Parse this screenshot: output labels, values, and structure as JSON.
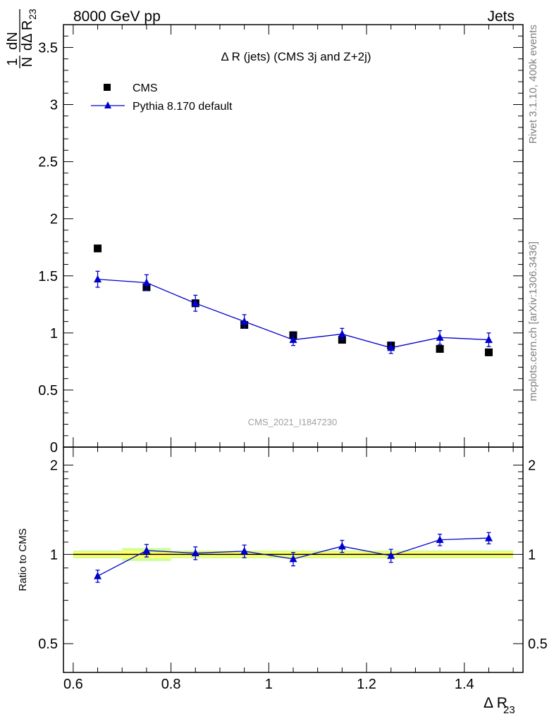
{
  "header": {
    "left": "8000 GeV pp",
    "right": "Jets"
  },
  "side_labels": {
    "rivet": "Rivet 3.1.10,  400k events",
    "mcplots": "mcplots.cern.ch [arXiv:1306.3436]"
  },
  "analysis_id": "CMS_2021_I1847230",
  "colors": {
    "data": "#000000",
    "mc": "#0000cc",
    "band_inner": "#ffff66",
    "band_outer": "#ccff99",
    "axis": "#000000",
    "analysis_id": "#a0a0a0",
    "side": "#808080"
  },
  "chart_data": [
    {
      "type": "scatter",
      "panel": "main",
      "title": "Δ R (jets) (CMS 3j and Z+2j)",
      "ylabel": "1/N dN/dΔ R23",
      "ylabel_parts": {
        "num": "1",
        "den": "N",
        "dnum": "dN",
        "dden": "dΔ R",
        "sub": "23"
      },
      "xlim": [
        0.58,
        1.52
      ],
      "ylim": [
        0,
        3.7
      ],
      "yticks": [
        "0",
        "0.5",
        "1",
        "1.5",
        "2",
        "2.5",
        "3",
        "3.5"
      ],
      "ytick_values": [
        0,
        0.5,
        1,
        1.5,
        2,
        2.5,
        3,
        3.5
      ],
      "legend_position": "top-left",
      "series": [
        {
          "name": "CMS",
          "marker": "square",
          "x": [
            0.65,
            0.75,
            0.85,
            0.95,
            1.05,
            1.15,
            1.25,
            1.35,
            1.45
          ],
          "y": [
            1.74,
            1.4,
            1.26,
            1.07,
            0.98,
            0.94,
            0.89,
            0.86,
            0.83
          ]
        },
        {
          "name": "Pythia 8.170 default",
          "marker": "triangle",
          "x": [
            0.65,
            0.75,
            0.85,
            0.95,
            1.05,
            1.15,
            1.25,
            1.35,
            1.45
          ],
          "y": [
            1.47,
            1.44,
            1.26,
            1.1,
            0.94,
            0.99,
            0.87,
            0.96,
            0.94
          ],
          "yerr": [
            0.07,
            0.07,
            0.07,
            0.06,
            0.05,
            0.05,
            0.05,
            0.06,
            0.06
          ]
        }
      ]
    },
    {
      "type": "line",
      "panel": "ratio",
      "ylabel": "Ratio to CMS",
      "xlabel": "Δ R",
      "xlabel_sub": "23",
      "xlim": [
        0.58,
        1.52
      ],
      "ylim": [
        0.4,
        2.3
      ],
      "log_y": true,
      "xticks": [
        "0.6",
        "0.8",
        "1",
        "1.2",
        "1.4"
      ],
      "xtick_values": [
        0.6,
        0.8,
        1.0,
        1.2,
        1.4
      ],
      "yticks": [
        "0.5",
        "1",
        "2"
      ],
      "ytick_values": [
        0.5,
        1,
        2
      ],
      "reference": 1,
      "band": {
        "x": [
          0.6,
          0.7,
          0.8,
          0.9,
          1.0,
          1.1,
          1.2,
          1.3,
          1.4,
          1.5
        ],
        "inner": [
          0.02,
          0.03,
          0.02,
          0.02,
          0.02,
          0.02,
          0.02,
          0.02,
          0.02
        ],
        "outer": [
          0.03,
          0.05,
          0.03,
          0.03,
          0.03,
          0.03,
          0.03,
          0.03,
          0.03
        ]
      },
      "series": [
        {
          "name": "Pythia 8.170 default",
          "x": [
            0.65,
            0.75,
            0.85,
            0.95,
            1.05,
            1.15,
            1.25,
            1.35,
            1.45
          ],
          "y": [
            0.845,
            1.03,
            1.01,
            1.025,
            0.965,
            1.065,
            0.99,
            1.12,
            1.135
          ],
          "yerr": [
            0.04,
            0.05,
            0.05,
            0.05,
            0.05,
            0.05,
            0.05,
            0.05,
            0.05
          ]
        }
      ]
    }
  ]
}
